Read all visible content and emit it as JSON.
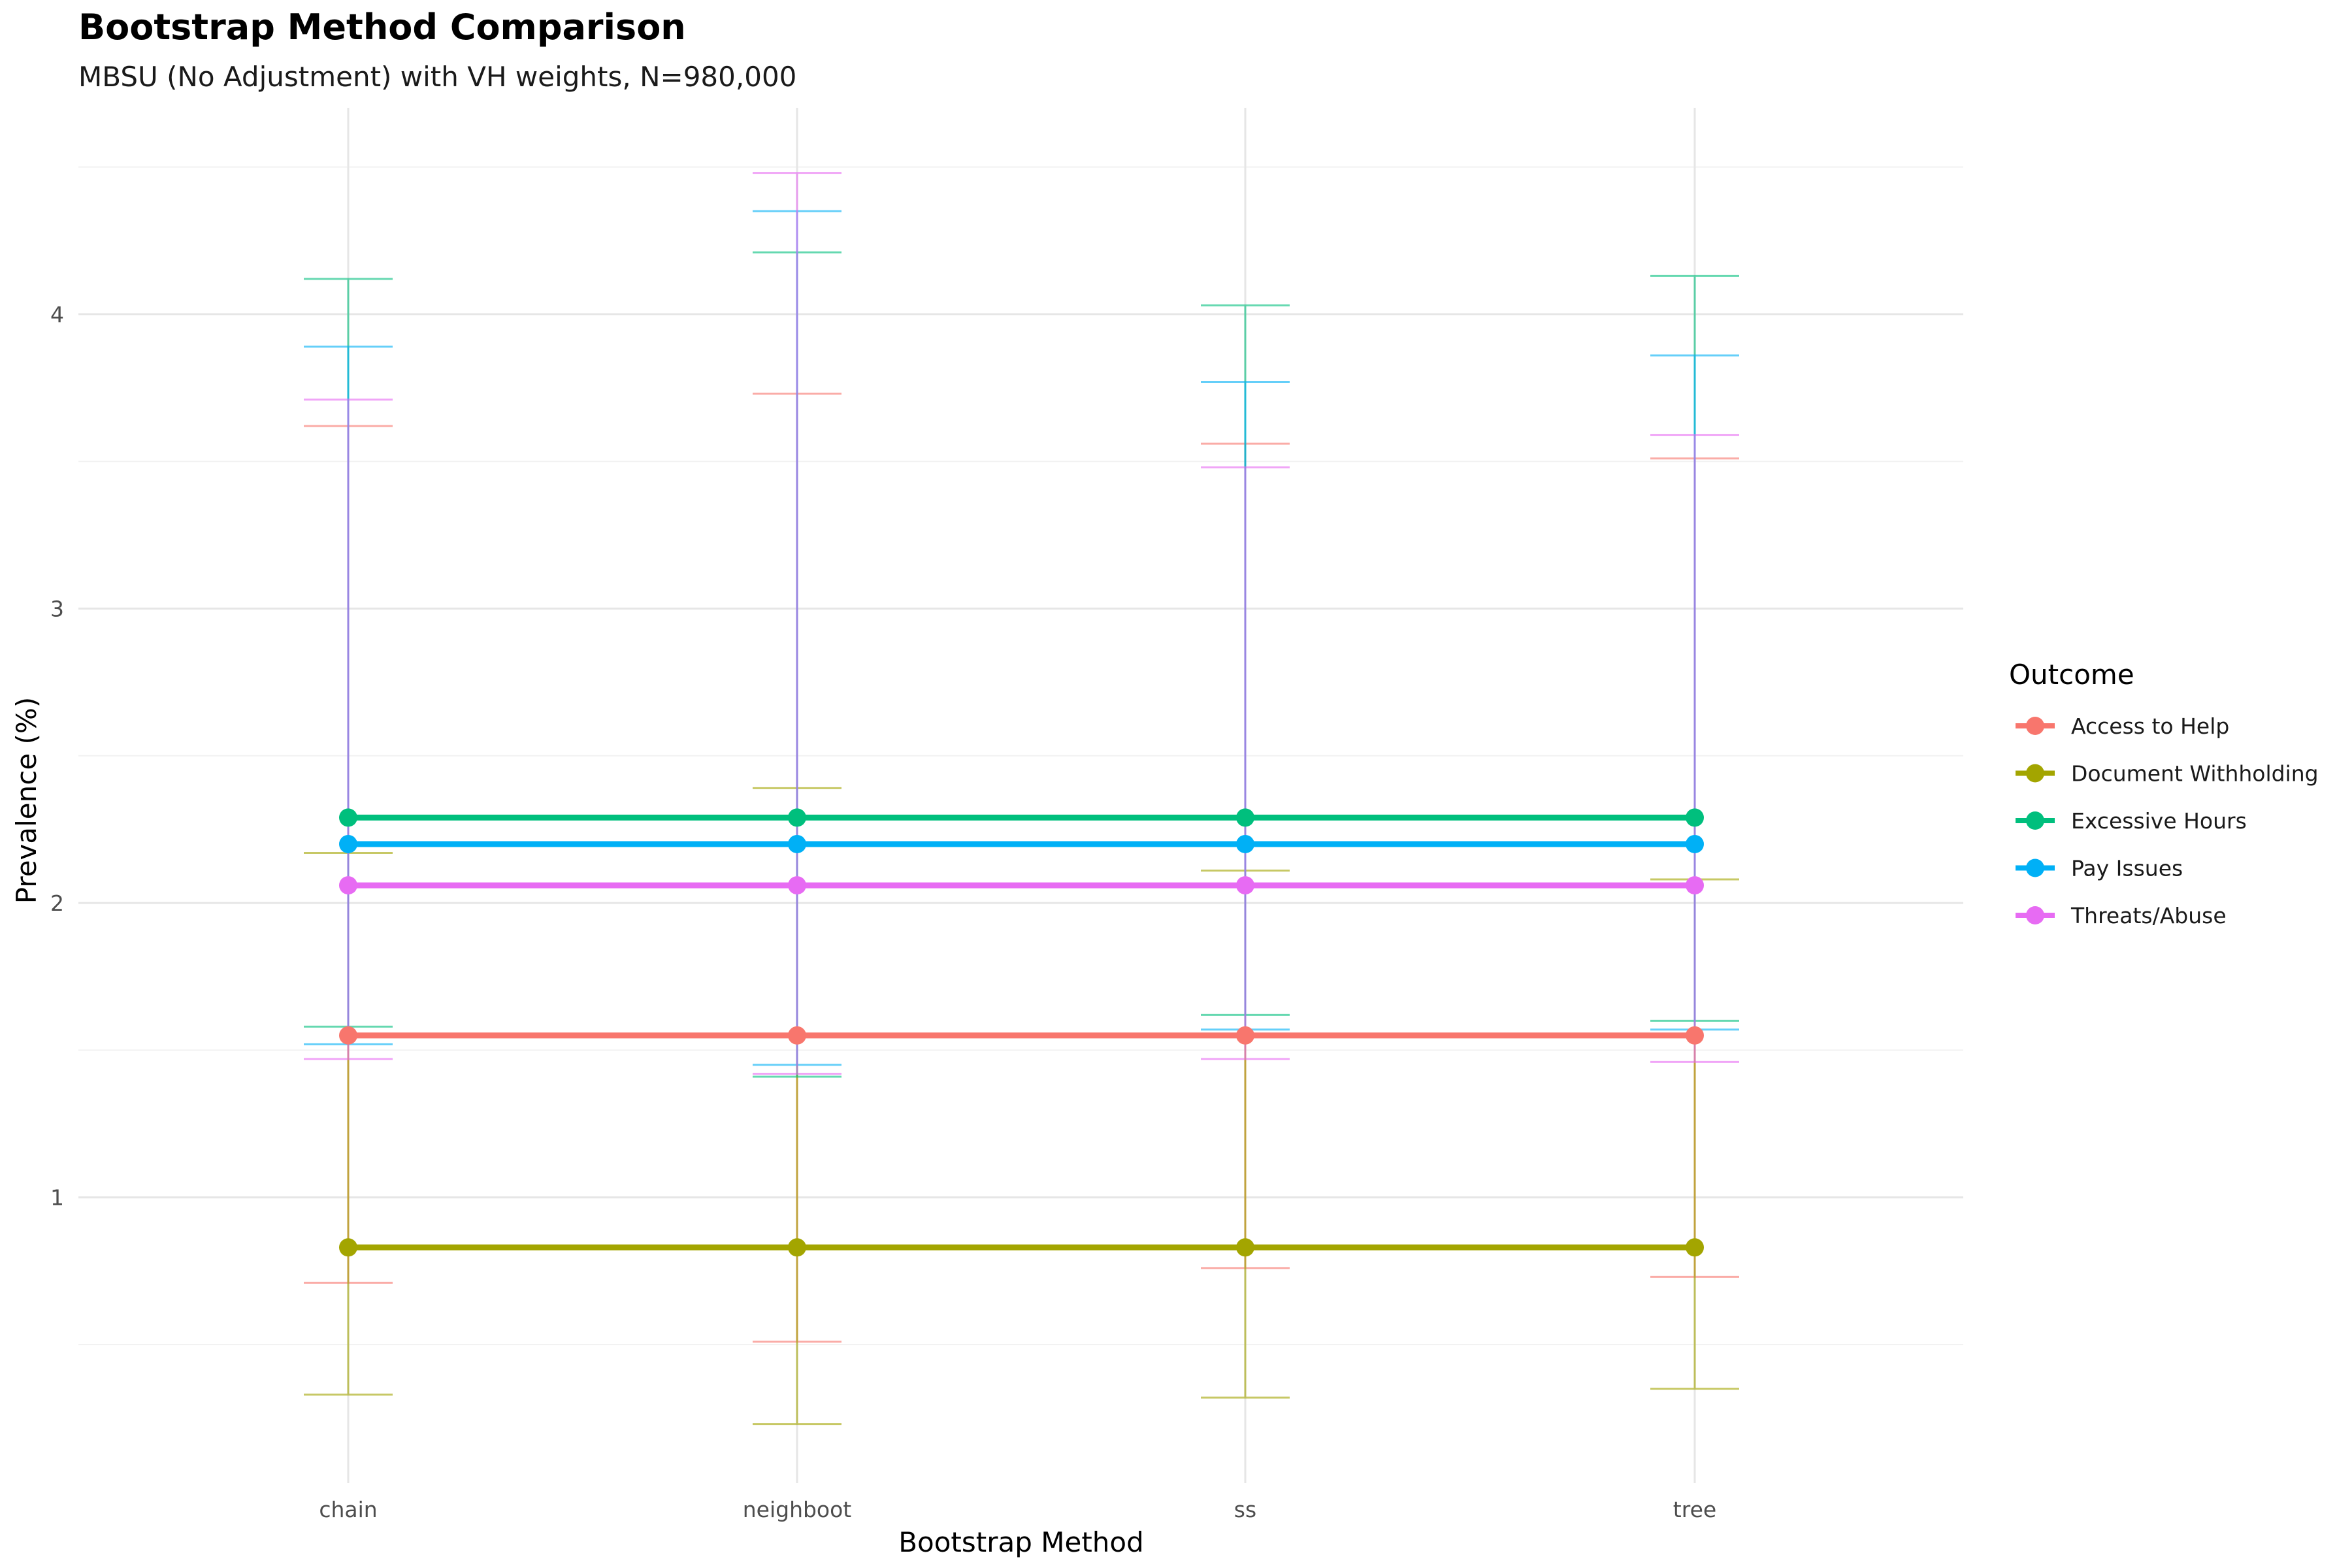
{
  "chart_data": {
    "type": "line",
    "title": "Bootstrap Method Comparison",
    "subtitle": "MBSU (No Adjustment) with VH weights, N=980,000",
    "xlabel": "Bootstrap Method",
    "ylabel": "Prevalence (%)",
    "categories": [
      "chain",
      "neighboot",
      "ss",
      "tree"
    ],
    "y_ticks": [
      1,
      2,
      3,
      4
    ],
    "ylim": [
      0.05,
      4.7
    ],
    "grid": true,
    "legend_title": "Outcome",
    "legend_position": "right",
    "series": [
      {
        "name": "Access to Help",
        "color": "#F8766D",
        "values": [
          1.55,
          1.55,
          1.55,
          1.55
        ],
        "lower": [
          0.71,
          0.51,
          0.76,
          0.73
        ],
        "upper": [
          3.62,
          3.73,
          3.56,
          3.51
        ]
      },
      {
        "name": "Document Withholding",
        "color": "#A3A500",
        "values": [
          0.83,
          0.83,
          0.83,
          0.83
        ],
        "lower": [
          0.33,
          0.23,
          0.32,
          0.35
        ],
        "upper": [
          2.17,
          2.39,
          2.11,
          2.08
        ]
      },
      {
        "name": "Excessive Hours",
        "color": "#00BF7D",
        "values": [
          2.29,
          2.29,
          2.29,
          2.29
        ],
        "lower": [
          1.58,
          1.41,
          1.62,
          1.6
        ],
        "upper": [
          4.12,
          4.21,
          4.03,
          4.13
        ]
      },
      {
        "name": "Pay Issues",
        "color": "#00B0F6",
        "values": [
          2.2,
          2.2,
          2.2,
          2.2
        ],
        "lower": [
          1.52,
          1.45,
          1.57,
          1.57
        ],
        "upper": [
          3.89,
          4.35,
          3.77,
          3.86
        ]
      },
      {
        "name": "Threats/Abuse",
        "color": "#E76BF3",
        "values": [
          2.06,
          2.06,
          2.06,
          2.06
        ],
        "lower": [
          1.47,
          1.42,
          1.47,
          1.46
        ],
        "upper": [
          3.71,
          4.48,
          3.48,
          3.59
        ]
      }
    ]
  }
}
